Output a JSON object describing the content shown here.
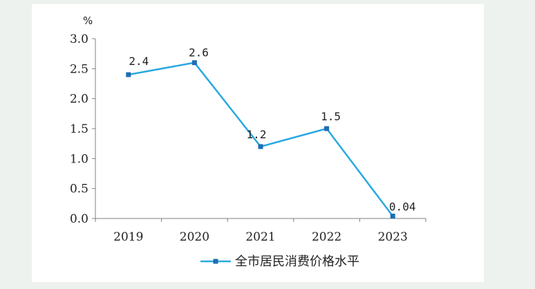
{
  "chart_data": {
    "type": "line",
    "categories": [
      "2019",
      "2020",
      "2021",
      "2022",
      "2023"
    ],
    "series": [
      {
        "name": "全市居民消费价格水平",
        "values": [
          2.4,
          2.6,
          1.2,
          1.5,
          0.04
        ],
        "data_labels": [
          "2.4",
          "2.6",
          "1.2",
          "1.5",
          "0.04"
        ],
        "color": "#29a8e0",
        "marker_color": "#1f6db5"
      }
    ],
    "y_unit": "%",
    "ylim": [
      0,
      3.0
    ],
    "y_ticks": [
      "0.0",
      "0.5",
      "1.0",
      "1.5",
      "2.0",
      "2.5",
      "3.0"
    ],
    "grid": false,
    "legend_position": "bottom"
  }
}
